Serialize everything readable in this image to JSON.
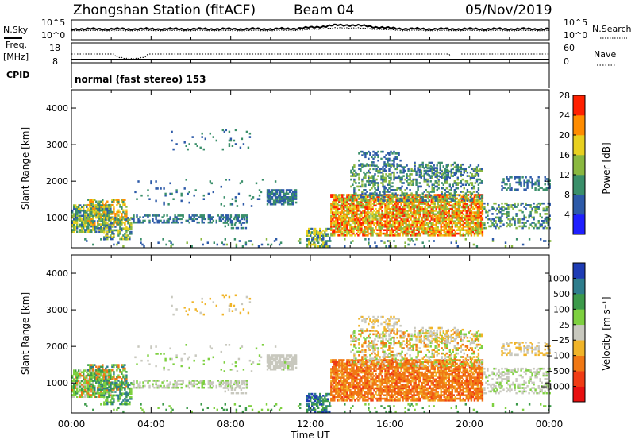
{
  "header": {
    "station": "Zhongshan Station (fitACF)",
    "beam": "Beam 04",
    "date": "05/Nov/2019"
  },
  "noise_panel": {
    "left_label": "N.Sky",
    "right_label": "N.Search",
    "left_ticks": [
      "10^5",
      "10^0"
    ],
    "right_ticks": [
      "10^5",
      "10^0"
    ]
  },
  "freq_panel": {
    "left_label_1": "Freq.",
    "left_label_2": "[MHz]",
    "right_label": "Nave",
    "left_ticks": [
      "18",
      "8"
    ],
    "right_ticks": [
      "60",
      "0"
    ]
  },
  "cpid": {
    "label": "CPID",
    "text": "normal (fast stereo) 153"
  },
  "time_axis": {
    "label": "Time UT",
    "ticks": [
      "00:00",
      "04:00",
      "08:00",
      "12:00",
      "16:00",
      "20:00",
      "00:00"
    ]
  },
  "chart_data": [
    {
      "type": "heatmap",
      "name": "power",
      "ylabel": "Slant Range [km]",
      "yticks": [
        "1000",
        "2000",
        "3000",
        "4000"
      ],
      "ylim": [
        180,
        4500
      ],
      "xlim_hours": [
        0,
        24
      ],
      "colorbar_label": "Power [dB]",
      "colorbar_ticks": [
        "4",
        "8",
        "12",
        "16",
        "20",
        "24",
        "28"
      ],
      "colors": [
        "#1f1fff",
        "#2d5aa8",
        "#3a8f6a",
        "#8ab840",
        "#e8d020",
        "#ff8c00",
        "#ff2000"
      ]
    },
    {
      "type": "heatmap",
      "name": "velocity",
      "ylabel": "Slant Range [km]",
      "yticks": [
        "1000",
        "2000",
        "3000",
        "4000"
      ],
      "ylim": [
        180,
        4500
      ],
      "xlim_hours": [
        0,
        24
      ],
      "colorbar_label": "Velocity [m s⁻¹]",
      "colorbar_ticks": [
        "1000",
        "500",
        "100",
        "25",
        "−25",
        "−100",
        "−500",
        "−1000"
      ],
      "colors": [
        "#1e3cb4",
        "#2e7d8c",
        "#3c9a4a",
        "#7ed040",
        "#c8c8be",
        "#f0b428",
        "#f07814",
        "#f03c14",
        "#e81010"
      ]
    }
  ]
}
